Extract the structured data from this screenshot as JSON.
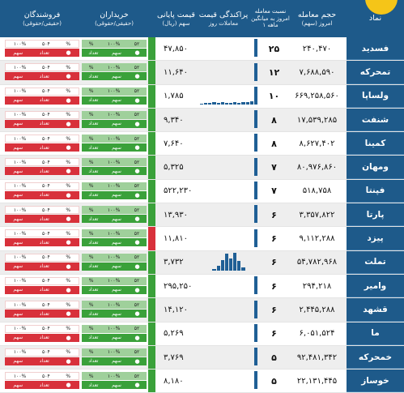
{
  "header": {
    "symbol": "نماد",
    "volume": "حجم معامله",
    "volume_sub": "امروز (سهم)",
    "ratio": "نسبت معامله",
    "ratio_sub1": "امروز به میانگین",
    "ratio_sub2": "۱ ماهه",
    "spread": "پراکندگی قیمت",
    "spread_sub": "معاملات روز",
    "price": "قیمت پایانی",
    "price_sub": "سهم (ریال)",
    "buyers": "خریداران",
    "buyers_sub": "(حقیقی/حقوقی)",
    "sellers": "فروشندگان",
    "sellers_sub": "(حقیقی/حقوقی)"
  },
  "colors": {
    "header_bg": "#1e5a8a",
    "buy_green": "#3aa13a",
    "sell_red": "#d8313b",
    "spark_blue": "#1f5f95"
  },
  "rows": [
    {
      "symbol": "فسدید",
      "volume": "۲۴۰,۴۷۰",
      "ratio": "۲۵",
      "price": "۴۷,۸۵۰",
      "spark": [
        0,
        0,
        0,
        0,
        0,
        0,
        0,
        0,
        0,
        0,
        0,
        0,
        0,
        100
      ]
    },
    {
      "symbol": "تمحرکه",
      "volume": "۷,۶۸۸,۵۹۰",
      "ratio": "۱۲",
      "price": "۱۱,۶۴۰",
      "spark": [
        0,
        0,
        0,
        0,
        0,
        0,
        0,
        0,
        0,
        0,
        0,
        0,
        0,
        100
      ]
    },
    {
      "symbol": "ولساپا",
      "volume": "۶۶۹,۲۵۸,۵۶۰",
      "ratio": "۱۰",
      "price": "۱,۷۸۵",
      "spark": [
        5,
        10,
        8,
        12,
        10,
        12,
        10,
        8,
        12,
        10,
        14,
        12,
        18,
        100
      ]
    },
    {
      "symbol": "شنفت",
      "volume": "۱۷,۵۳۹,۲۸۵",
      "ratio": "۸",
      "price": "۹,۳۴۰",
      "spark": [
        0,
        0,
        0,
        0,
        0,
        0,
        0,
        0,
        0,
        0,
        0,
        0,
        0,
        100
      ]
    },
    {
      "symbol": "کمینا",
      "volume": "۸,۶۲۷,۴۰۲",
      "ratio": "۸",
      "price": "۷,۶۴۰",
      "spark": [
        0,
        0,
        0,
        0,
        0,
        0,
        0,
        0,
        0,
        0,
        0,
        0,
        0,
        100
      ]
    },
    {
      "symbol": "ومهان",
      "volume": "۸۰,۹۷۶,۸۶۰",
      "ratio": "۷",
      "price": "۵,۳۲۵",
      "spark": [
        0,
        0,
        0,
        0,
        0,
        0,
        0,
        0,
        0,
        0,
        0,
        0,
        0,
        100
      ]
    },
    {
      "symbol": "فپنتا",
      "volume": "۵۱۸,۷۵۸",
      "ratio": "۷",
      "price": "۵۲۲,۲۳۰",
      "spark": [
        0,
        0,
        0,
        0,
        0,
        0,
        0,
        0,
        0,
        0,
        0,
        0,
        0,
        100
      ]
    },
    {
      "symbol": "پارتا",
      "volume": "۳,۳۵۷,۸۲۲",
      "ratio": "۶",
      "price": "۱۳,۹۳۰",
      "spark": [
        0,
        0,
        0,
        0,
        0,
        0,
        0,
        0,
        0,
        0,
        0,
        0,
        0,
        100
      ]
    },
    {
      "symbol": "پیزد",
      "volume": "۹,۱۱۲,۲۸۸",
      "ratio": "۶",
      "price": "۱۱,۸۱۰",
      "spark": [
        0,
        0,
        0,
        0,
        0,
        0,
        0,
        0,
        0,
        0,
        0,
        0,
        0,
        100
      ]
    },
    {
      "symbol": "تملت",
      "volume": "۵۴,۷۸۲,۹۶۸",
      "ratio": "۶",
      "price": "۳,۷۳۲",
      "spark": [
        0,
        0,
        0,
        10,
        25,
        60,
        95,
        70,
        100,
        55,
        20,
        0,
        0,
        0
      ]
    },
    {
      "symbol": "وامیر",
      "volume": "۲۹۴,۲۱۸",
      "ratio": "۶",
      "price": "۲۹۵,۲۵۰",
      "spark": [
        0,
        0,
        0,
        0,
        0,
        0,
        0,
        0,
        0,
        0,
        0,
        0,
        0,
        100
      ]
    },
    {
      "symbol": "قشهد",
      "volume": "۲,۴۴۵,۲۸۸",
      "ratio": "۶",
      "price": "۱۴,۱۲۰",
      "spark": [
        0,
        0,
        0,
        0,
        0,
        0,
        0,
        0,
        0,
        0,
        0,
        0,
        0,
        100
      ]
    },
    {
      "symbol": "ما",
      "volume": "۶,۰۵۱,۵۲۴",
      "ratio": "۶",
      "price": "۵,۲۶۹",
      "spark": [
        0,
        0,
        0,
        0,
        0,
        0,
        0,
        0,
        0,
        0,
        0,
        0,
        0,
        100
      ]
    },
    {
      "symbol": "خمحرکه",
      "volume": "۹۲,۴۸۱,۳۴۲",
      "ratio": "۵",
      "price": "۳,۷۶۹",
      "spark": [
        0,
        0,
        0,
        0,
        0,
        0,
        0,
        0,
        0,
        0,
        0,
        0,
        0,
        100
      ]
    },
    {
      "symbol": "خوساز",
      "volume": "۲۲,۱۳۱,۴۴۵",
      "ratio": "۵",
      "price": "۸,۱۸۰",
      "spark": [
        0,
        0,
        0,
        0,
        0,
        0,
        0,
        0,
        0,
        0,
        0,
        0,
        0,
        100
      ]
    }
  ],
  "labels": {
    "buy_top": [
      "%",
      "۱۰۰%",
      "۵۲"
    ],
    "buy_bot": [
      "تعداد",
      "سهم",
      ""
    ],
    "sell_top": [
      "۱۰۰%",
      "۵۰۴",
      "%"
    ],
    "sell_bot": [
      "سهم",
      "تعداد",
      ""
    ]
  }
}
